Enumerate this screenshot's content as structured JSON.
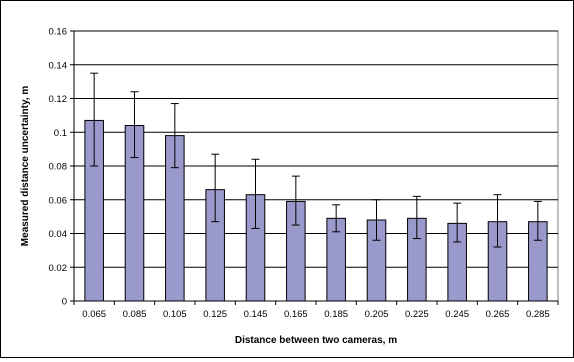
{
  "chart_data": {
    "type": "bar",
    "title": "",
    "xlabel": "Distance between two cameras, m",
    "ylabel": "Measured distance uncertainty, m",
    "ylim": [
      0,
      0.16
    ],
    "yticks": [
      "0",
      "0.02",
      "0.04",
      "0.06",
      "0.08",
      "0.1",
      "0.12",
      "0.14",
      "0.16"
    ],
    "grid": true,
    "legend": "none",
    "bar_color": "#9999cc",
    "categories": [
      "0.065",
      "0.085",
      "0.105",
      "0.125",
      "0.145",
      "0.165",
      "0.185",
      "0.205",
      "0.225",
      "0.245",
      "0.265",
      "0.285"
    ],
    "values": [
      0.107,
      0.104,
      0.098,
      0.066,
      0.063,
      0.059,
      0.049,
      0.048,
      0.049,
      0.046,
      0.047,
      0.047
    ],
    "error_upper": [
      0.135,
      0.124,
      0.117,
      0.087,
      0.084,
      0.074,
      0.057,
      0.06,
      0.062,
      0.058,
      0.063,
      0.059
    ],
    "error_lower": [
      0.08,
      0.085,
      0.079,
      0.047,
      0.043,
      0.045,
      0.041,
      0.036,
      0.037,
      0.035,
      0.032,
      0.036
    ]
  }
}
